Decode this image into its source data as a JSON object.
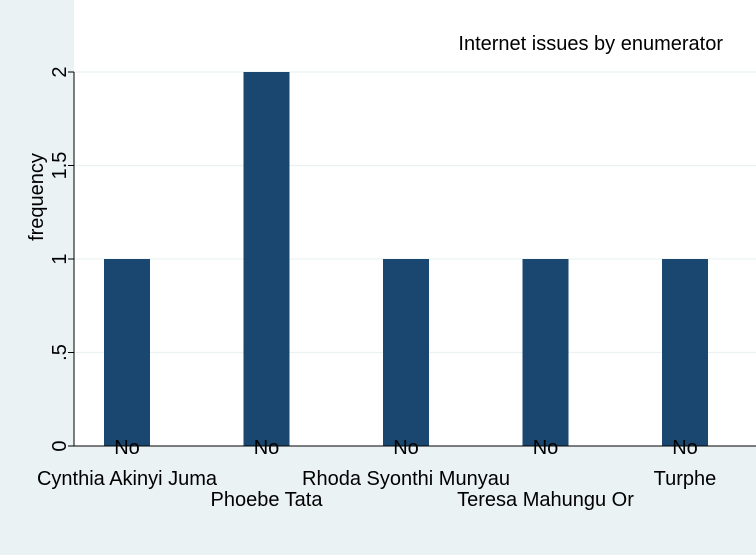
{
  "chart_data": {
    "type": "bar",
    "title": "Internet issues by enumerator",
    "xlabel": "",
    "ylabel": "frequency",
    "ylim": [
      0,
      2.1
    ],
    "yticks": [
      0,
      0.5,
      1,
      1.5,
      2
    ],
    "ytick_labels": [
      "0",
      ".5",
      "1",
      "1.5",
      "2"
    ],
    "grid": true,
    "categories": [
      "Cynthia Akinyi Juma",
      "Phoebe Tata",
      "Rhoda Syonthi Munyau",
      "Teresa Mahungu Or",
      "Turphe"
    ],
    "bar_labels": [
      "No",
      "No",
      "No",
      "No",
      "No"
    ],
    "values": [
      1,
      2,
      1,
      1,
      1
    ],
    "colors": {
      "bar": "#1a476f",
      "grid": "#eaf2f3",
      "plot_bg": "#ffffff",
      "outer_bg": "#eaf2f3"
    }
  }
}
